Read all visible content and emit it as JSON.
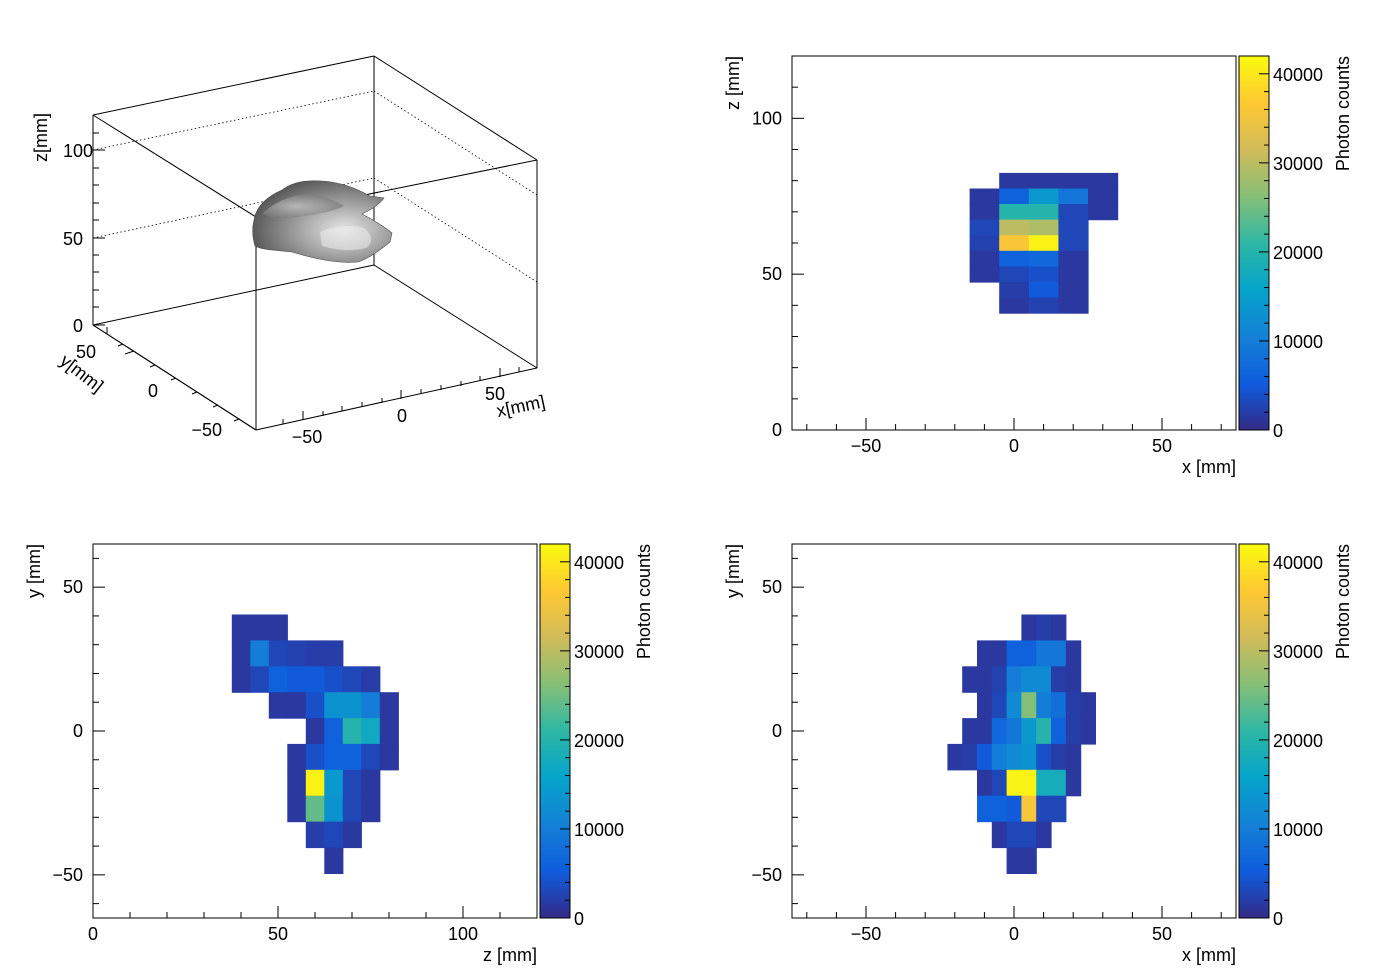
{
  "colors": {
    "palette": [
      "#352a87",
      "#0f5cdd",
      "#1481d6",
      "#06a4ca",
      "#2eb7a4",
      "#87bf77",
      "#d1bb59",
      "#fec832",
      "#f9fb0e"
    ],
    "surface_dark": "#6a6a6a",
    "surface_light": "#d9d9d9",
    "axis": "#000000"
  },
  "chart_data": [
    {
      "id": "panel-3d",
      "type": "surface3d",
      "x_label": "x[mm]",
      "y_label": "y[mm]",
      "z_label": "z[mm]",
      "x_ticks": [
        "−50",
        "0",
        "50"
      ],
      "y_ticks": [
        "50",
        "0",
        "−50"
      ],
      "z_ticks": [
        "0",
        "50",
        "100"
      ],
      "xlim": [
        -75,
        75
      ],
      "ylim": [
        -65,
        65
      ],
      "zlim": [
        0,
        120
      ]
    },
    {
      "id": "panel-xz",
      "type": "heatmap",
      "xlabel": "x [mm]",
      "ylabel": "z [mm]",
      "colorbar_label": "Photon counts",
      "colorbar_ticks": [
        "0",
        "10000",
        "20000",
        "30000",
        "40000"
      ],
      "zmax": 42000,
      "xlim": [
        -75,
        75
      ],
      "ylim": [
        0,
        120
      ],
      "x_ticks": [
        "−50",
        "0",
        "50"
      ],
      "y_ticks": [
        "0",
        "50",
        "100"
      ],
      "bin_x": 10,
      "bin_y": 5,
      "cells": [
        [
          0,
          80,
          1500
        ],
        [
          10,
          80,
          1500
        ],
        [
          20,
          80,
          1500
        ],
        [
          30,
          80,
          1500
        ],
        [
          -10,
          75,
          1500
        ],
        [
          0,
          75,
          6000
        ],
        [
          10,
          75,
          14000
        ],
        [
          20,
          75,
          9000
        ],
        [
          30,
          75,
          1500
        ],
        [
          -10,
          70,
          1500
        ],
        [
          0,
          70,
          20000
        ],
        [
          10,
          70,
          20000
        ],
        [
          20,
          70,
          3000
        ],
        [
          30,
          70,
          1500
        ],
        [
          -10,
          65,
          3000
        ],
        [
          0,
          65,
          30000
        ],
        [
          10,
          65,
          29000
        ],
        [
          20,
          65,
          3000
        ],
        [
          -10,
          60,
          2500
        ],
        [
          0,
          60,
          36000
        ],
        [
          10,
          60,
          41000
        ],
        [
          20,
          60,
          3000
        ],
        [
          -10,
          55,
          1500
        ],
        [
          0,
          55,
          6000
        ],
        [
          10,
          55,
          7000
        ],
        [
          20,
          55,
          1500
        ],
        [
          -10,
          50,
          1500
        ],
        [
          0,
          50,
          3000
        ],
        [
          10,
          50,
          4000
        ],
        [
          20,
          50,
          1500
        ],
        [
          0,
          45,
          2000
        ],
        [
          10,
          45,
          5000
        ],
        [
          20,
          45,
          1500
        ],
        [
          0,
          40,
          1500
        ],
        [
          10,
          40,
          2500
        ],
        [
          20,
          40,
          1500
        ]
      ]
    },
    {
      "id": "panel-zy",
      "type": "heatmap",
      "xlabel": "z [mm]",
      "ylabel": "y [mm]",
      "colorbar_label": "Photon counts",
      "colorbar_ticks": [
        "0",
        "10000",
        "20000",
        "30000",
        "40000"
      ],
      "zmax": 42000,
      "xlim": [
        0,
        120
      ],
      "ylim": [
        -65,
        65
      ],
      "x_ticks": [
        "0",
        "50",
        "100"
      ],
      "y_ticks": [
        "−50",
        "0",
        "50"
      ],
      "bin_x": 5,
      "bin_y": 9,
      "cells": [
        [
          40,
          36,
          1500
        ],
        [
          45,
          36,
          1500
        ],
        [
          50,
          36,
          1500
        ],
        [
          40,
          27,
          1500
        ],
        [
          45,
          27,
          10000
        ],
        [
          50,
          27,
          3000
        ],
        [
          55,
          27,
          2500
        ],
        [
          60,
          27,
          2000
        ],
        [
          65,
          27,
          2000
        ],
        [
          40,
          18,
          1500
        ],
        [
          45,
          18,
          3000
        ],
        [
          50,
          18,
          6000
        ],
        [
          55,
          18,
          5000
        ],
        [
          60,
          18,
          5000
        ],
        [
          65,
          18,
          4000
        ],
        [
          70,
          18,
          3000
        ],
        [
          75,
          18,
          2000
        ],
        [
          50,
          9,
          1500
        ],
        [
          55,
          9,
          1500
        ],
        [
          60,
          9,
          4000
        ],
        [
          65,
          9,
          13000
        ],
        [
          70,
          9,
          13000
        ],
        [
          75,
          9,
          10000
        ],
        [
          80,
          9,
          1500
        ],
        [
          60,
          0,
          1500
        ],
        [
          65,
          0,
          6000
        ],
        [
          70,
          0,
          20000
        ],
        [
          75,
          0,
          17000
        ],
        [
          80,
          0,
          1500
        ],
        [
          55,
          -9,
          1500
        ],
        [
          60,
          -9,
          4000
        ],
        [
          65,
          -9,
          6000
        ],
        [
          70,
          -9,
          6000
        ],
        [
          75,
          -9,
          3000
        ],
        [
          80,
          -9,
          1500
        ],
        [
          55,
          -18,
          1500
        ],
        [
          60,
          -18,
          41000
        ],
        [
          65,
          -18,
          14000
        ],
        [
          70,
          -18,
          3000
        ],
        [
          75,
          -18,
          1500
        ],
        [
          55,
          -27,
          1500
        ],
        [
          60,
          -27,
          24000
        ],
        [
          65,
          -27,
          13000
        ],
        [
          70,
          -27,
          3000
        ],
        [
          75,
          -27,
          1500
        ],
        [
          60,
          -36,
          2000
        ],
        [
          65,
          -36,
          3000
        ],
        [
          70,
          -36,
          1500
        ],
        [
          65,
          -45,
          1500
        ]
      ]
    },
    {
      "id": "panel-xy",
      "type": "heatmap",
      "xlabel": "x [mm]",
      "ylabel": "y [mm]",
      "colorbar_label": "Photon counts",
      "colorbar_ticks": [
        "0",
        "10000",
        "20000",
        "30000",
        "40000"
      ],
      "zmax": 42000,
      "xlim": [
        -75,
        75
      ],
      "ylim": [
        -65,
        65
      ],
      "x_ticks": [
        "−50",
        "0",
        "50"
      ],
      "y_ticks": [
        "−50",
        "0",
        "50"
      ],
      "bin_x": 5,
      "bin_y": 9,
      "cells": [
        [
          5,
          36,
          1500
        ],
        [
          10,
          36,
          2000
        ],
        [
          15,
          36,
          1500
        ],
        [
          -10,
          27,
          1500
        ],
        [
          -5,
          27,
          1500
        ],
        [
          0,
          27,
          6000
        ],
        [
          5,
          27,
          6000
        ],
        [
          10,
          27,
          9000
        ],
        [
          15,
          27,
          9000
        ],
        [
          20,
          27,
          1500
        ],
        [
          -15,
          18,
          1500
        ],
        [
          -10,
          18,
          1500
        ],
        [
          -5,
          18,
          2500
        ],
        [
          0,
          18,
          10000
        ],
        [
          5,
          18,
          12000
        ],
        [
          10,
          18,
          12000
        ],
        [
          15,
          18,
          2000
        ],
        [
          20,
          18,
          1500
        ],
        [
          -10,
          9,
          1500
        ],
        [
          -5,
          9,
          3000
        ],
        [
          0,
          9,
          12000
        ],
        [
          5,
          9,
          26000
        ],
        [
          10,
          9,
          10000
        ],
        [
          15,
          9,
          8000
        ],
        [
          20,
          9,
          2000
        ],
        [
          25,
          9,
          1500
        ],
        [
          -15,
          0,
          1500
        ],
        [
          -10,
          0,
          1500
        ],
        [
          -5,
          0,
          7000
        ],
        [
          0,
          0,
          9000
        ],
        [
          5,
          0,
          14000
        ],
        [
          10,
          0,
          20000
        ],
        [
          15,
          0,
          6000
        ],
        [
          20,
          0,
          2000
        ],
        [
          25,
          0,
          1500
        ],
        [
          -20,
          -9,
          1500
        ],
        [
          -15,
          -9,
          2000
        ],
        [
          -10,
          -9,
          5000
        ],
        [
          -5,
          -9,
          10000
        ],
        [
          0,
          -9,
          12000
        ],
        [
          5,
          -9,
          13000
        ],
        [
          10,
          -9,
          4000
        ],
        [
          15,
          -9,
          2000
        ],
        [
          20,
          -9,
          1500
        ],
        [
          -10,
          -18,
          1500
        ],
        [
          -5,
          -18,
          3000
        ],
        [
          0,
          -18,
          41000
        ],
        [
          5,
          -18,
          41000
        ],
        [
          10,
          -18,
          18000
        ],
        [
          15,
          -18,
          18000
        ],
        [
          20,
          -18,
          1500
        ],
        [
          -10,
          -27,
          6000
        ],
        [
          -5,
          -27,
          6000
        ],
        [
          0,
          -27,
          5000
        ],
        [
          5,
          -27,
          36000
        ],
        [
          10,
          -27,
          3000
        ],
        [
          15,
          -27,
          3000
        ],
        [
          -5,
          -36,
          1500
        ],
        [
          0,
          -36,
          3000
        ],
        [
          5,
          -36,
          3000
        ],
        [
          10,
          -36,
          1500
        ],
        [
          0,
          -45,
          1500
        ],
        [
          5,
          -45,
          1500
        ]
      ]
    }
  ]
}
